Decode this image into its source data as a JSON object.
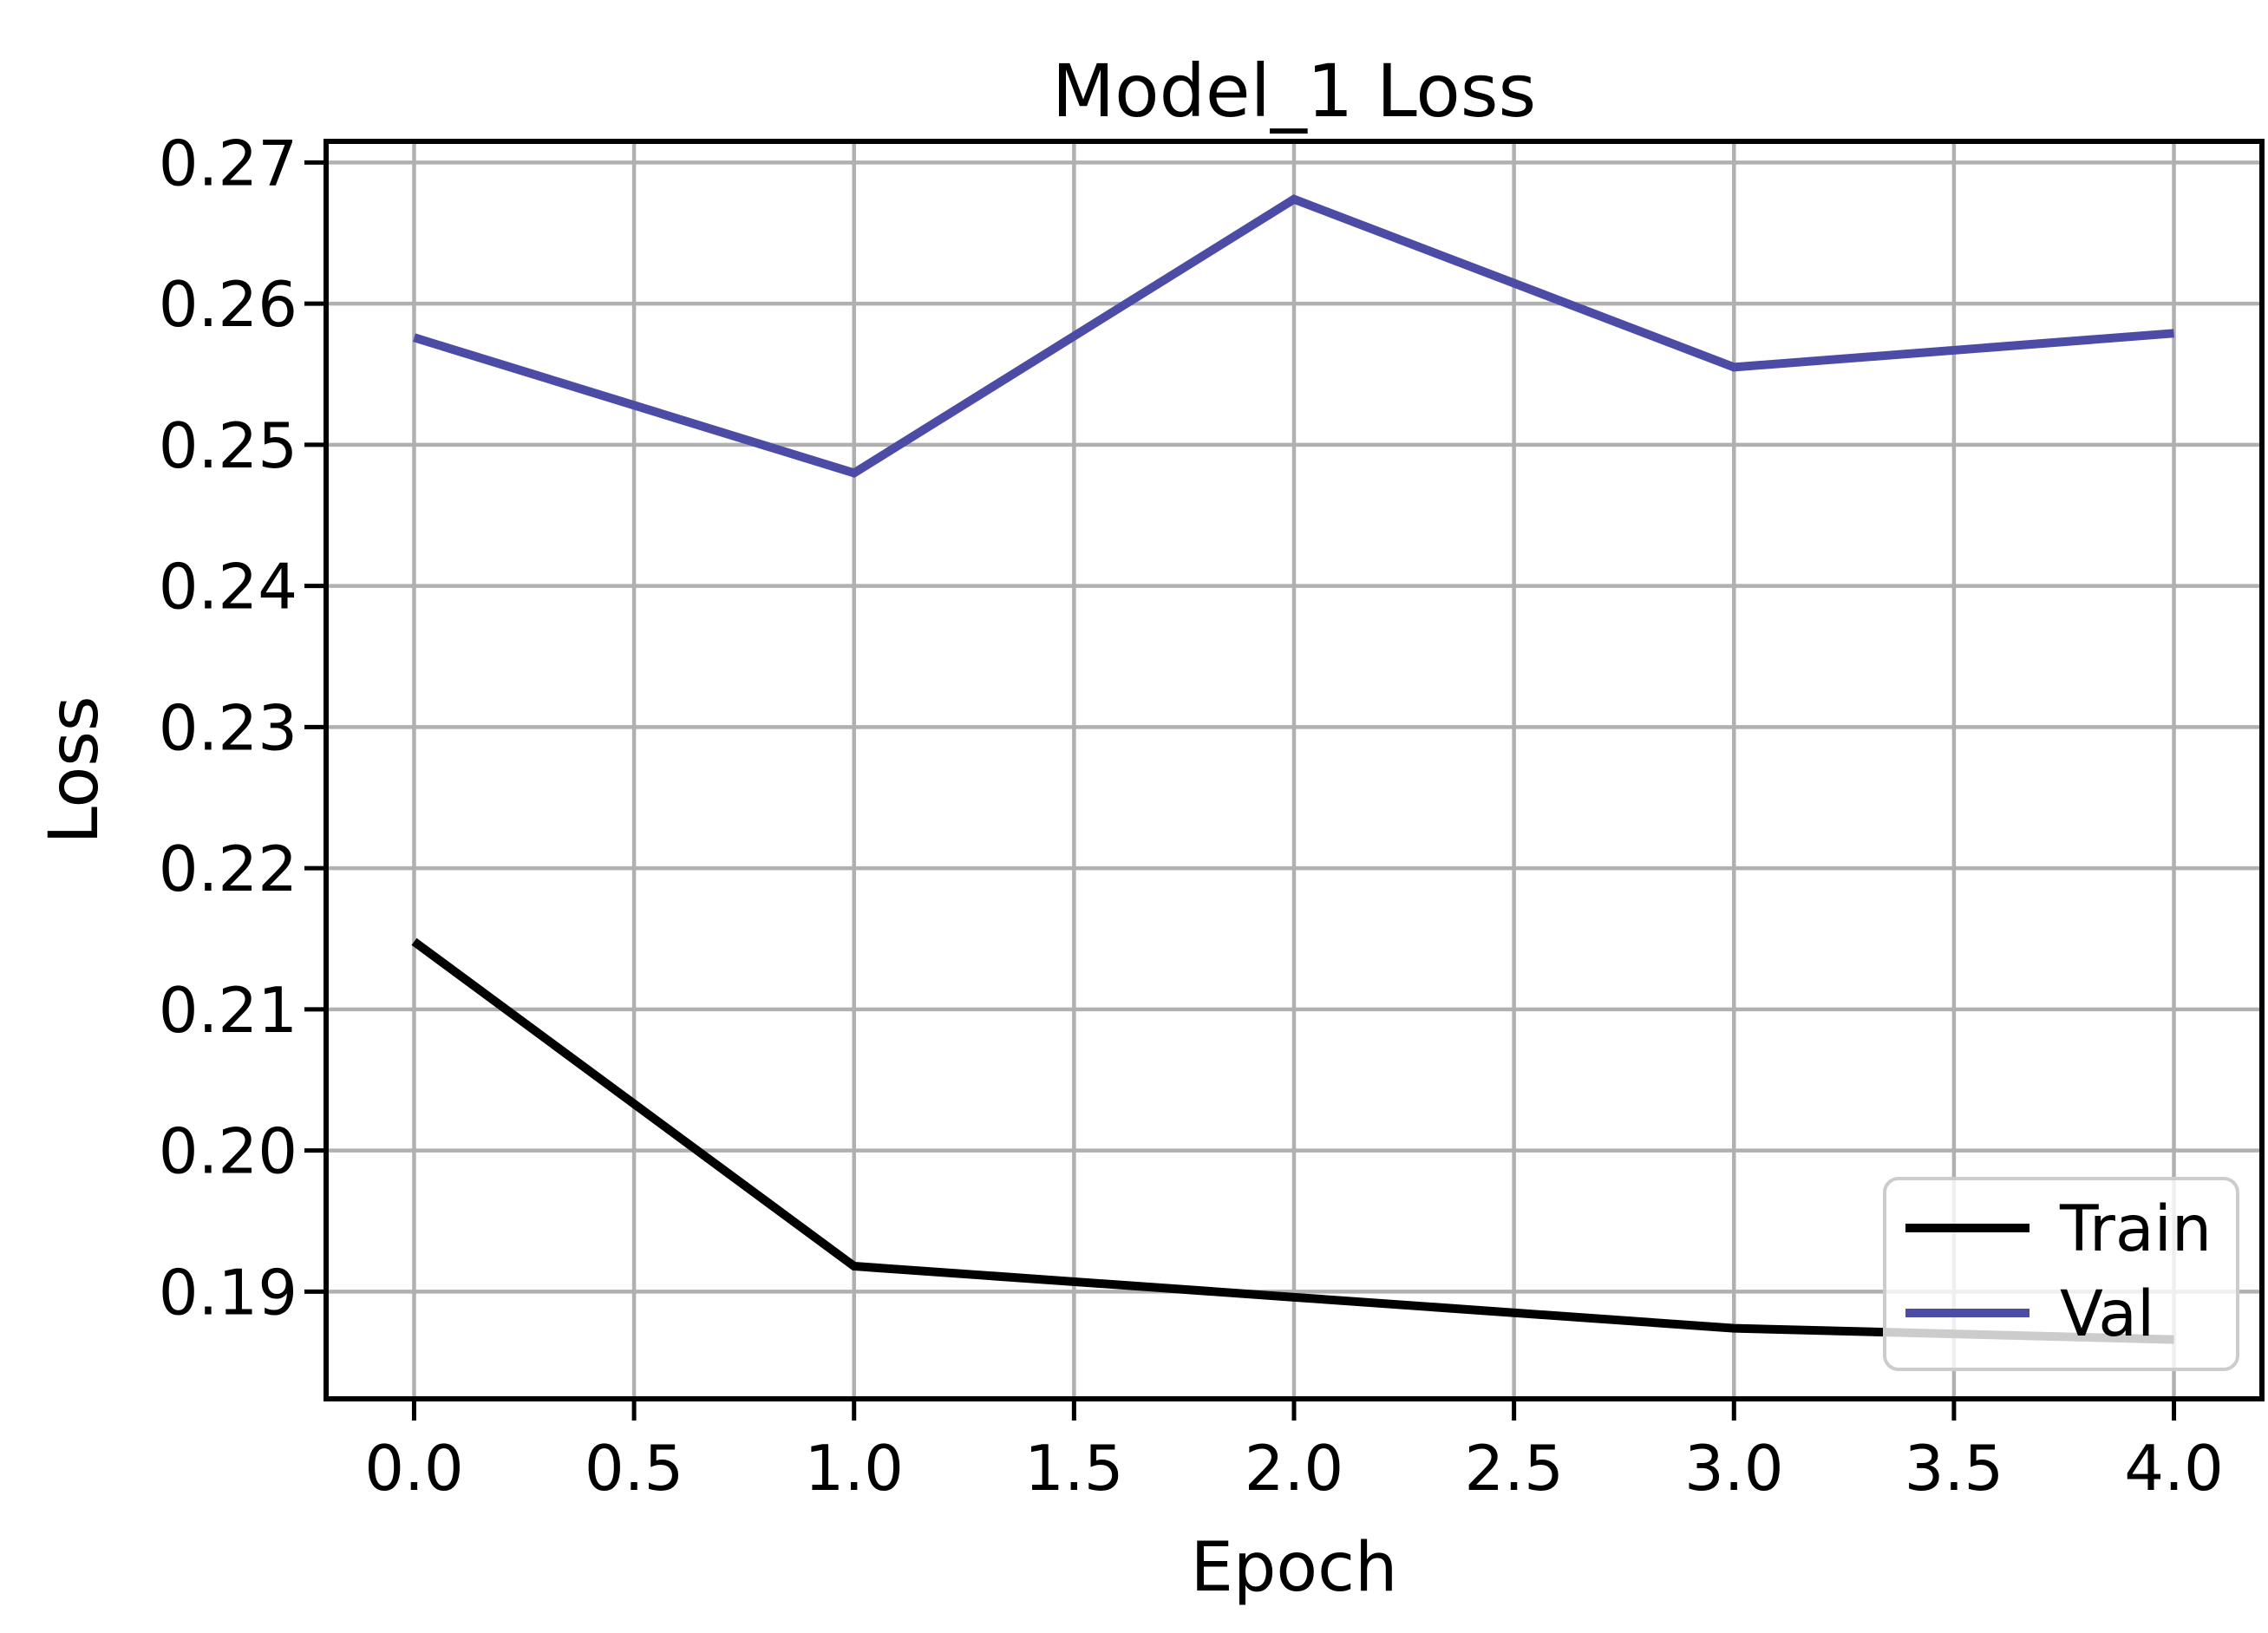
{
  "chart_data": {
    "type": "line",
    "title": "Model_1 Loss",
    "xlabel": "Epoch",
    "ylabel": "Loss",
    "x": [
      0,
      1,
      2,
      3,
      4
    ],
    "series": [
      {
        "name": "Train",
        "color": "#000000",
        "values": [
          0.2148,
          0.1918,
          0.1896,
          0.1874,
          0.1866
        ]
      },
      {
        "name": "Val",
        "color": "#4c4ca6",
        "values": [
          0.2576,
          0.248,
          0.2674,
          0.2555,
          0.2579
        ]
      }
    ],
    "xlim": [
      -0.2,
      4.2
    ],
    "ylim": [
      0.1824,
      0.2715
    ],
    "xticks": [
      0.0,
      0.5,
      1.0,
      1.5,
      2.0,
      2.5,
      3.0,
      3.5,
      4.0
    ],
    "yticks": [
      0.19,
      0.2,
      0.21,
      0.22,
      0.23,
      0.24,
      0.25,
      0.26,
      0.27
    ],
    "xtick_labels": [
      "0.0",
      "0.5",
      "1.0",
      "1.5",
      "2.0",
      "2.5",
      "3.0",
      "3.5",
      "4.0"
    ],
    "ytick_labels": [
      "0.19",
      "0.20",
      "0.21",
      "0.22",
      "0.23",
      "0.24",
      "0.25",
      "0.26",
      "0.27"
    ],
    "grid": true,
    "legend": {
      "position": "lower right",
      "entries": [
        "Train",
        "Val"
      ]
    }
  },
  "colors": {
    "grid": "#b0b0b0",
    "spine": "#000000",
    "text": "#000000",
    "legend_border": "#cccccc",
    "legend_bg_rgba": "rgba(255,255,255,0.8)"
  }
}
